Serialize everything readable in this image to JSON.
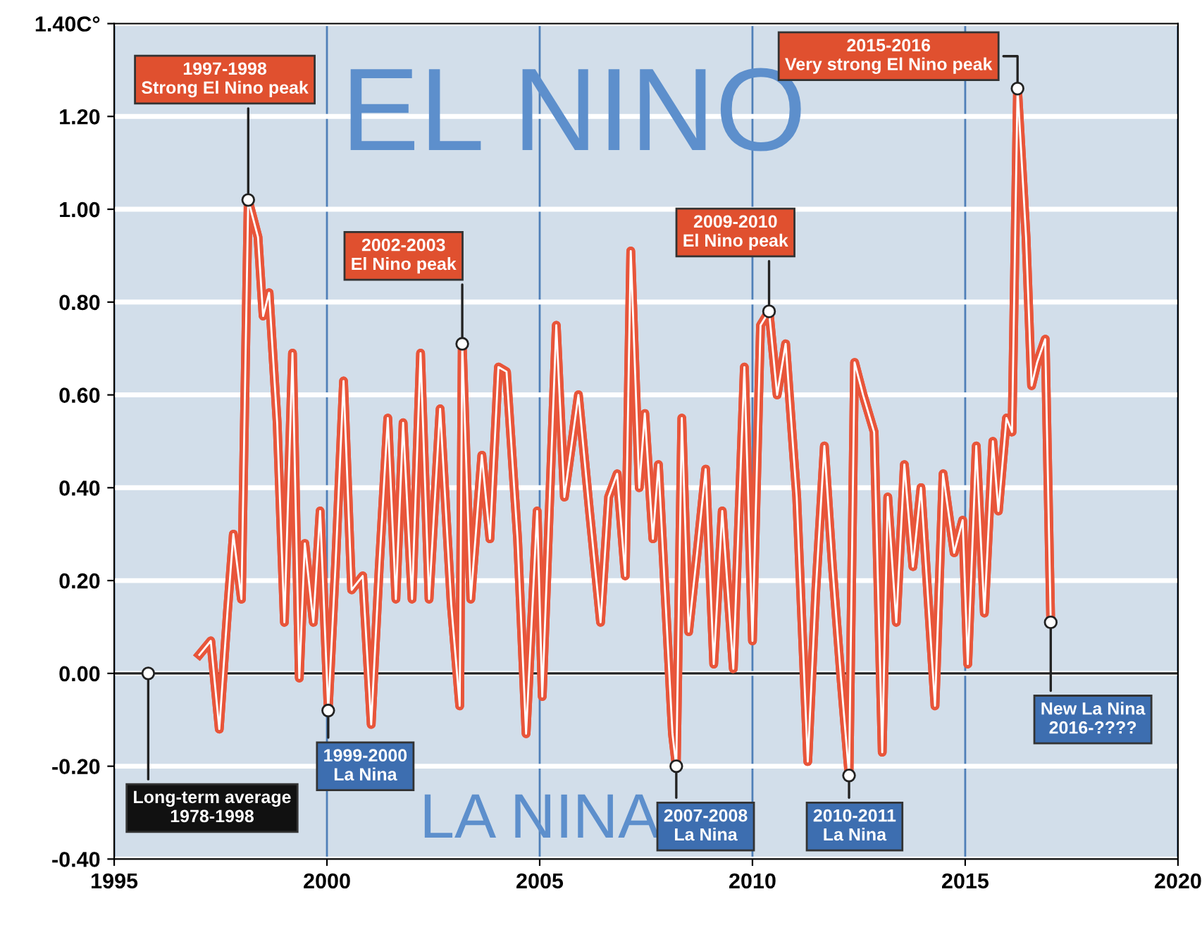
{
  "chart_data": {
    "type": "line",
    "xlim": [
      1995,
      2020
    ],
    "xticks": [
      1995,
      2000,
      2005,
      2010,
      2015,
      2020
    ],
    "ylim": [
      -0.4,
      1.4
    ],
    "yticks": [
      {
        "value": -0.4,
        "label": "-0.40"
      },
      {
        "value": -0.2,
        "label": "-0.20"
      },
      {
        "value": 0,
        "label": "0.00"
      },
      {
        "value": 0.2,
        "label": "0.20"
      },
      {
        "value": 0.4,
        "label": "0.40"
      },
      {
        "value": 0.6,
        "label": "0.60"
      },
      {
        "value": 0.8,
        "label": "0.80"
      },
      {
        "value": 1.0,
        "label": "1.00"
      },
      {
        "value": 1.2,
        "label": "1.20"
      },
      {
        "value": 1.4,
        "label": "1.40C°"
      }
    ],
    "grid": true,
    "marker": "none",
    "line_style": "solid",
    "ref_lines": [
      {
        "axis": "y",
        "value": 0,
        "label": null,
        "color": "#222222"
      }
    ],
    "series": [
      {
        "color": "#e8553a",
        "x": [
          1997.0,
          1997.27,
          1997.47,
          1997.66,
          1997.8,
          1997.99,
          1998.15,
          1998.38,
          1998.5,
          1998.64,
          1998.83,
          1999.0,
          1999.19,
          1999.35,
          1999.48,
          1999.68,
          1999.84,
          2000.03,
          2000.2,
          2000.39,
          2000.58,
          2000.84,
          2001.04,
          2001.23,
          2001.43,
          2001.62,
          2001.79,
          2002.0,
          2002.2,
          2002.4,
          2002.66,
          2002.92,
          2003.12,
          2003.18,
          2003.38,
          2003.64,
          2003.83,
          2004.03,
          2004.22,
          2004.48,
          2004.68,
          2004.94,
          2005.06,
          2005.39,
          2005.58,
          2005.91,
          2006.17,
          2006.43,
          2006.62,
          2006.82,
          2007.01,
          2007.14,
          2007.34,
          2007.47,
          2007.66,
          2007.79,
          2008.12,
          2008.21,
          2008.34,
          2008.5,
          2008.7,
          2008.9,
          2009.09,
          2009.29,
          2009.55,
          2009.81,
          2010.0,
          2010.19,
          2010.39,
          2010.58,
          2010.78,
          2011.04,
          2011.3,
          2011.49,
          2011.69,
          2011.88,
          2012.08,
          2012.27,
          2012.4,
          2012.6,
          2012.86,
          2013.05,
          2013.18,
          2013.38,
          2013.57,
          2013.77,
          2013.96,
          2014.29,
          2014.48,
          2014.74,
          2014.94,
          2015.06,
          2015.26,
          2015.45,
          2015.65,
          2015.78,
          2015.97,
          2016.1,
          2016.23,
          2016.43,
          2016.56,
          2016.69,
          2016.88,
          2017.01
        ],
        "values": [
          0.04,
          0.07,
          -0.12,
          0.13,
          0.3,
          0.16,
          1.02,
          0.94,
          0.77,
          0.82,
          0.54,
          0.11,
          0.69,
          -0.01,
          0.28,
          0.11,
          0.35,
          -0.08,
          0.23,
          0.63,
          0.18,
          0.21,
          -0.11,
          0.23,
          0.55,
          0.16,
          0.54,
          0.16,
          0.69,
          0.16,
          0.57,
          0.15,
          -0.07,
          0.71,
          0.16,
          0.47,
          0.29,
          0.66,
          0.65,
          0.29,
          -0.13,
          0.35,
          -0.05,
          0.75,
          0.38,
          0.6,
          0.35,
          0.11,
          0.38,
          0.43,
          0.21,
          0.91,
          0.4,
          0.56,
          0.29,
          0.45,
          -0.13,
          -0.2,
          0.55,
          0.09,
          0.26,
          0.44,
          0.02,
          0.35,
          0.01,
          0.66,
          0.07,
          0.75,
          0.78,
          0.6,
          0.71,
          0.38,
          -0.19,
          0.18,
          0.49,
          0.23,
          -0.01,
          -0.22,
          0.67,
          0.6,
          0.52,
          -0.17,
          0.38,
          0.11,
          0.45,
          0.23,
          0.4,
          -0.07,
          0.43,
          0.26,
          0.33,
          0.02,
          0.49,
          0.13,
          0.5,
          0.35,
          0.55,
          0.52,
          1.26,
          0.94,
          0.62,
          0.67,
          0.72,
          0.11
        ]
      }
    ],
    "annotations": [
      "EL NINO",
      "LA NINA",
      {
        "text": "1997-1998\nStrong El Nino peak",
        "x": 1998.15,
        "y": 1.02
      },
      {
        "text": "2002-2003\nEl Nino peak",
        "x": 2003.18,
        "y": 0.71
      },
      {
        "text": "2009-2010\nEl Nino peak",
        "x": 2010.39,
        "y": 0.78
      },
      {
        "text": "2015-2016\nVery strong El Nino peak",
        "x": 2016.23,
        "y": 1.26
      },
      {
        "text": "Long-term average\n1978-1998",
        "x": 1995.8,
        "y": 0
      },
      {
        "text": "1999-2000\nLa Nina",
        "x": 2000.03,
        "y": -0.08
      },
      {
        "text": "2007-2008\nLa Nina",
        "x": 2008.21,
        "y": -0.2
      },
      {
        "text": "2010-2011\nLa Nina",
        "x": 2012.27,
        "y": -0.22
      },
      {
        "text": "New La Nina\n2016-????",
        "x": 2017.01,
        "y": 0.11
      }
    ]
  }
}
